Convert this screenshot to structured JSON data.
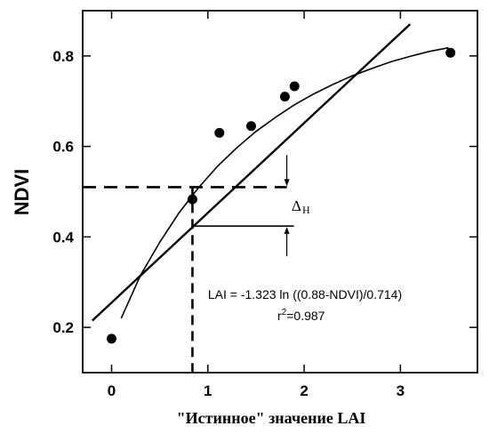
{
  "chart_data": {
    "type": "scatter",
    "xlabel": "\"Истинное\" значение LAI",
    "ylabel": "NDVI",
    "xlim": [
      -0.3,
      3.8
    ],
    "ylim": [
      0.1,
      0.9
    ],
    "xticks": [
      0,
      1,
      2,
      3
    ],
    "xtick_labels": [
      "0",
      "1",
      "2",
      "3"
    ],
    "yticks": [
      0.2,
      0.4,
      0.6,
      0.8
    ],
    "ytick_labels": [
      "0.2",
      "0.4",
      "0.6",
      "0.8"
    ],
    "grid": false,
    "points": {
      "x": [
        0.0,
        0.84,
        1.12,
        1.45,
        1.8,
        1.9,
        3.52
      ],
      "y": [
        0.175,
        0.483,
        0.63,
        0.645,
        0.71,
        0.733,
        0.807
      ]
    },
    "linear_fit": {
      "x": [
        -0.2,
        3.1
      ],
      "y": [
        0.215,
        0.87
      ]
    },
    "log_fit_curve": {
      "x": [
        0.1,
        0.3,
        0.5,
        0.7,
        0.9,
        1.1,
        1.3,
        1.5,
        1.7,
        1.9,
        2.1,
        2.3,
        2.5,
        2.7,
        2.9,
        3.1,
        3.3,
        3.5
      ],
      "y": [
        0.22,
        0.315,
        0.388,
        0.453,
        0.508,
        0.556,
        0.597,
        0.633,
        0.664,
        0.692,
        0.716,
        0.737,
        0.756,
        0.772,
        0.787,
        0.799,
        0.81,
        0.818
      ]
    },
    "dashed_guides": {
      "y_level": 0.51,
      "x_drop": 0.84,
      "x_end": 1.82
    },
    "delta_marker": {
      "x": 1.82,
      "y_top": 0.51,
      "y_bottom": 0.424,
      "hline_x_start": 0.84
    },
    "annotations": {
      "equation": "LAI = -1.323 ln ((0.88-NDVI)/0.714)",
      "r2_prefix": "r",
      "r2_sup": "2",
      "r2_value": "=0.987",
      "delta_symbol": "Δ",
      "delta_subscript": "H"
    }
  }
}
